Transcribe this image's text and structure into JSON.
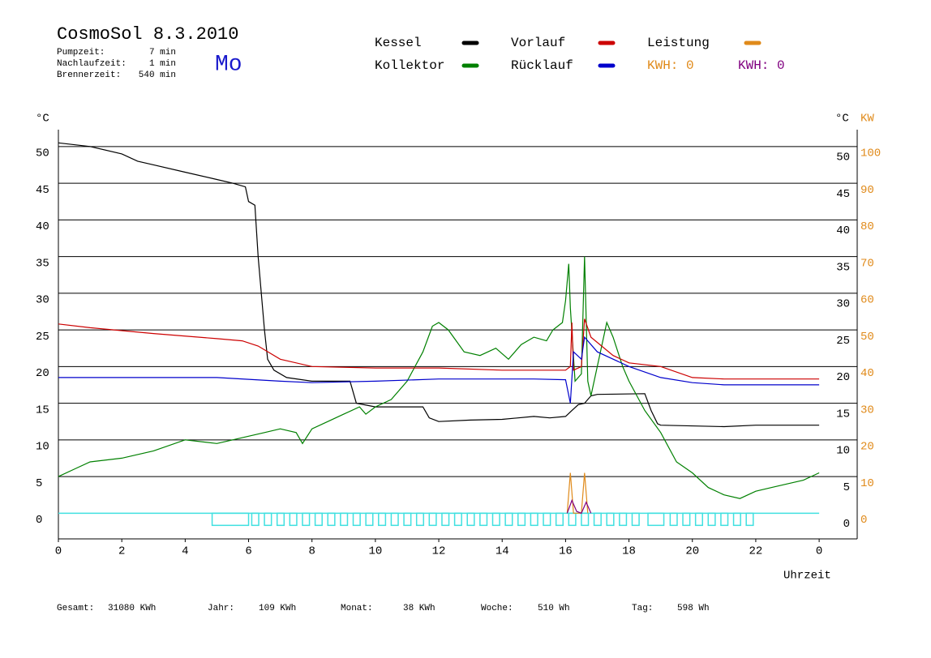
{
  "chart_data": {
    "type": "line",
    "title": "CosmoSol 8.3.2010",
    "info": [
      {
        "label": "Pumpzeit:",
        "value": "7 min"
      },
      {
        "label": "Nachlaufzeit:",
        "value": "1 min"
      },
      {
        "label": "Brennerzeit:",
        "value": "540 min"
      }
    ],
    "weekday": "Mo",
    "y_label": "°C",
    "y2_label": "KW",
    "x_label": "Uhrzeit",
    "kwh_labels": [
      {
        "text": "KWH: 0",
        "color": "#e08a1a"
      },
      {
        "text": "KWH: 0",
        "color": "#800080"
      }
    ],
    "footer": [
      {
        "label": "Gesamt:",
        "value": "31080 KWh"
      },
      {
        "label": "Jahr:",
        "value": "109 KWh"
      },
      {
        "label": "Monat:",
        "value": "38 KWh"
      },
      {
        "label": "Woche:",
        "value": "510 Wh"
      },
      {
        "label": "Tag:",
        "value": "598 Wh"
      }
    ],
    "xlim": [
      0,
      25.2
    ],
    "ylim": [
      -3.5,
      52.3
    ],
    "y2lim": [
      -7,
      104.6
    ],
    "xticks": [
      0,
      2,
      4,
      6,
      8,
      10,
      12,
      14,
      16,
      18,
      20,
      22,
      {
        "value": 24,
        "label": "0"
      }
    ],
    "yticks": [
      0,
      5,
      10,
      15,
      20,
      25,
      30,
      35,
      40,
      45,
      50
    ],
    "y2ticks": [
      0,
      10,
      20,
      30,
      40,
      50,
      60,
      70,
      80,
      90,
      100
    ],
    "grid": true,
    "series": [
      {
        "name": "Kessel",
        "color": "#000000",
        "x": [
          0,
          1,
          2,
          2.5,
          3,
          4,
          5,
          5.5,
          5.9,
          6.0,
          6.2,
          6.3,
          6.5,
          6.6,
          6.8,
          7.2,
          8,
          9,
          9.2,
          9.4,
          10,
          11.5,
          11.7,
          12,
          13,
          14,
          15,
          15.5,
          16,
          16.2,
          16.4,
          16.6,
          16.8,
          17,
          18.5,
          18.7,
          18.9,
          19,
          21,
          22,
          24
        ],
        "values": [
          50.5,
          50,
          49,
          48,
          47.5,
          46.5,
          45.5,
          45,
          44.5,
          42.5,
          42,
          35,
          25,
          21,
          19.5,
          18.5,
          18,
          18,
          18,
          15,
          14.5,
          14.5,
          13,
          12.5,
          12.7,
          12.8,
          13.2,
          13,
          13.2,
          14,
          14.8,
          15,
          16,
          16.2,
          16.3,
          14,
          12.2,
          12,
          11.8,
          12,
          12
        ]
      },
      {
        "name": "Kollektor",
        "color": "#008000",
        "x": [
          0,
          0.5,
          1,
          2,
          2.5,
          3,
          4,
          5,
          5.5,
          6,
          6.5,
          7,
          7.5,
          7.7,
          8,
          8.5,
          9,
          9.5,
          9.7,
          10,
          10.5,
          11,
          11.5,
          11.8,
          12,
          12.3,
          12.8,
          13.3,
          13.8,
          14.2,
          14.6,
          15,
          15.4,
          15.6,
          15.9,
          16,
          16.1,
          16.15,
          16.3,
          16.5,
          16.6,
          16.7,
          16.8,
          17,
          17.3,
          17.5,
          17.8,
          18,
          18.5,
          19,
          19.5,
          20,
          20.5,
          21,
          21.5,
          22,
          22.5,
          23,
          23.5,
          24
        ],
        "values": [
          5,
          6,
          7,
          7.5,
          8,
          8.5,
          10,
          9.5,
          10,
          10.5,
          11,
          11.5,
          11,
          9.5,
          11.5,
          12.5,
          13.5,
          14.5,
          13.5,
          14.5,
          15.5,
          18,
          22,
          25.5,
          26,
          25,
          22,
          21.5,
          22.5,
          21,
          23,
          24,
          23.5,
          25,
          26,
          29,
          34,
          28,
          18,
          19,
          35,
          18,
          16,
          20,
          26,
          24,
          20,
          18,
          14,
          11,
          7,
          5.5,
          3.5,
          2.5,
          2,
          3,
          3.5,
          4,
          4.5,
          5.5
        ]
      },
      {
        "name": "Vorlauf",
        "color": "#cc0000",
        "x": [
          0,
          1,
          3,
          5,
          5.8,
          6.3,
          7,
          8,
          10,
          12,
          14,
          16,
          16.15,
          16.2,
          16.25,
          16.5,
          16.6,
          16.8,
          17.5,
          18,
          19,
          20,
          21,
          24
        ],
        "values": [
          25.8,
          25.3,
          24.5,
          23.8,
          23.5,
          22.8,
          21,
          20,
          19.8,
          19.8,
          19.5,
          19.5,
          20,
          26,
          19.5,
          20,
          26.5,
          24,
          21.5,
          20.5,
          20,
          18.5,
          18.3,
          18.3
        ]
      },
      {
        "name": "Rücklauf",
        "color": "#0000cc",
        "x": [
          0,
          5,
          7,
          8,
          10,
          12,
          15,
          16,
          16.15,
          16.25,
          16.5,
          16.6,
          17,
          18,
          19,
          20,
          21,
          24
        ],
        "values": [
          18.5,
          18.5,
          18,
          17.8,
          18,
          18.3,
          18.3,
          18.2,
          15,
          22,
          21,
          24,
          22,
          20,
          18.5,
          17.8,
          17.5,
          17.5
        ]
      },
      {
        "name": "Leistung",
        "color": "#e08a1a",
        "axis": "y2",
        "x": [
          16.05,
          16.15,
          16.25,
          16.5,
          16.6,
          16.7
        ],
        "values": [
          0,
          11,
          0,
          0,
          11,
          0
        ]
      },
      {
        "color": "#800080",
        "axis": "y2",
        "x": [
          16.05,
          16.2,
          16.35,
          16.5,
          16.65,
          16.8
        ],
        "values": [
          0,
          3.5,
          0.5,
          0,
          3,
          0
        ]
      }
    ],
    "pump": [
      [
        4.85,
        6.0
      ],
      [
        6.1,
        6.32
      ],
      [
        6.5,
        6.72
      ],
      [
        6.9,
        7.12
      ],
      [
        7.3,
        7.52
      ],
      [
        7.7,
        7.92
      ],
      [
        8.1,
        8.32
      ],
      [
        8.5,
        8.72
      ],
      [
        8.9,
        9.12
      ],
      [
        9.3,
        9.52
      ],
      [
        9.7,
        9.92
      ],
      [
        10.1,
        10.32
      ],
      [
        10.5,
        10.72
      ],
      [
        10.9,
        11.12
      ],
      [
        11.3,
        11.52
      ],
      [
        11.7,
        11.92
      ],
      [
        12.1,
        12.32
      ],
      [
        12.5,
        12.72
      ],
      [
        12.9,
        13.12
      ],
      [
        13.3,
        13.52
      ],
      [
        13.7,
        13.92
      ],
      [
        14.1,
        14.32
      ],
      [
        14.5,
        14.72
      ],
      [
        14.9,
        15.12
      ],
      [
        15.3,
        15.52
      ],
      [
        15.7,
        15.92
      ],
      [
        16.1,
        16.32
      ],
      [
        16.5,
        16.72
      ],
      [
        16.9,
        17.12
      ],
      [
        17.3,
        17.52
      ],
      [
        17.7,
        17.92
      ],
      [
        18.1,
        18.32
      ],
      [
        18.6,
        19.1
      ],
      [
        19.3,
        19.52
      ],
      [
        19.7,
        19.92
      ],
      [
        20.1,
        20.32
      ],
      [
        20.5,
        20.72
      ],
      [
        20.9,
        21.12
      ],
      [
        21.3,
        21.52
      ],
      [
        21.7,
        21.92
      ]
    ]
  }
}
